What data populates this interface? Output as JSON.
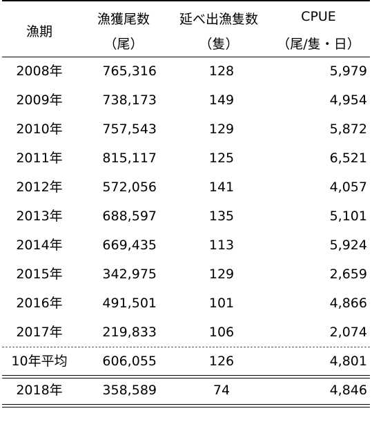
{
  "header": {
    "col_period": "漁期",
    "col_catch": "漁獲尾数",
    "col_catch_unit": "（尾）",
    "col_trips": "延べ出漁隻数",
    "col_trips_unit": "（隻）",
    "col_cpue": "CPUE",
    "col_cpue_unit": "（尾/隻・日）"
  },
  "rows": [
    {
      "year": "2008年",
      "catch": "765,316",
      "trips": "128",
      "cpue": "5,979"
    },
    {
      "year": "2009年",
      "catch": "738,173",
      "trips": "149",
      "cpue": "4,954"
    },
    {
      "year": "2010年",
      "catch": "757,543",
      "trips": "129",
      "cpue": "5,872"
    },
    {
      "year": "2011年",
      "catch": "815,117",
      "trips": "125",
      "cpue": "6,521"
    },
    {
      "year": "2012年",
      "catch": "572,056",
      "trips": "141",
      "cpue": "4,057"
    },
    {
      "year": "2013年",
      "catch": "688,597",
      "trips": "135",
      "cpue": "5,101"
    },
    {
      "year": "2014年",
      "catch": "669,435",
      "trips": "113",
      "cpue": "5,924"
    },
    {
      "year": "2015年",
      "catch": "342,975",
      "trips": "129",
      "cpue": "2,659"
    },
    {
      "year": "2016年",
      "catch": "491,501",
      "trips": "101",
      "cpue": "4,866"
    },
    {
      "year": "2017年",
      "catch": "219,833",
      "trips": "106",
      "cpue": "2,074"
    }
  ],
  "average": {
    "year": "10年平均",
    "catch": "606,055",
    "trips": "126",
    "cpue": "4,801"
  },
  "latest": {
    "year": "2018年",
    "catch": "358,589",
    "trips": "74",
    "cpue": "4,846"
  }
}
